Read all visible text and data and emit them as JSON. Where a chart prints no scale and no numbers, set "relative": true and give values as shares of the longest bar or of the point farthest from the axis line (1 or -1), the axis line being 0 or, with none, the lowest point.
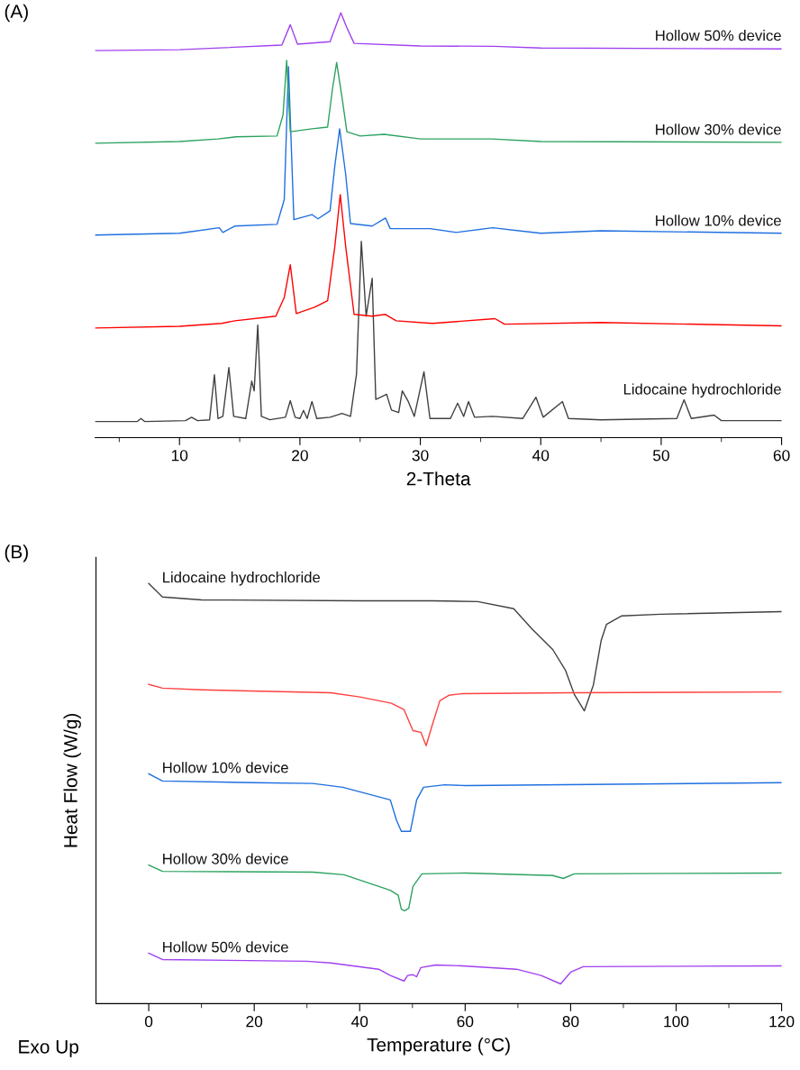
{
  "chart_data": [
    {
      "type": "line",
      "title": "(A)",
      "xlabel": "2-Theta",
      "relative": true,
      "xlim": [
        3,
        60
      ],
      "xticks": [
        {
          "value": 5,
          "label": null
        },
        10,
        {
          "value": 15,
          "label": null
        },
        20,
        {
          "value": 25,
          "label": null
        },
        30,
        {
          "value": 35,
          "label": null
        },
        40,
        {
          "value": 45,
          "label": null
        },
        50,
        {
          "value": 55,
          "label": null
        },
        60
      ],
      "grid": false,
      "legend": false,
      "marker": "none",
      "line_style": "solid",
      "series": [
        {
          "name": "Lidocaine hydrochloride",
          "color": "#404040",
          "x": [
            3,
            6.5,
            6.8,
            7.1,
            10.5,
            11,
            11.5,
            12.5,
            12.9,
            13.2,
            13.6,
            14.1,
            14.5,
            15.5,
            16.0,
            16.2,
            16.5,
            16.8,
            17.5,
            18.8,
            19.2,
            19.6,
            20.0,
            20.3,
            20.6,
            21.0,
            21.4,
            22.5,
            23.5,
            24.2,
            24.7,
            25.1,
            25.5,
            26.0,
            26.3,
            26.7,
            27.2,
            27.6,
            28.2,
            28.5,
            29.0,
            29.5,
            30.3,
            30.8,
            32.5,
            33.1,
            33.6,
            34.0,
            34.5,
            36.0,
            38.5,
            39.6,
            40.2,
            41.8,
            42.3,
            45,
            51.3,
            51.9,
            52.5,
            54.4,
            55,
            60
          ],
          "values": [
            0.038,
            0.038,
            0.045,
            0.038,
            0.04,
            0.048,
            0.04,
            0.042,
            0.148,
            0.045,
            0.05,
            0.165,
            0.05,
            0.045,
            0.133,
            0.11,
            0.265,
            0.05,
            0.042,
            0.048,
            0.087,
            0.048,
            0.045,
            0.064,
            0.045,
            0.085,
            0.045,
            0.048,
            0.057,
            0.05,
            0.15,
            0.462,
            0.286,
            0.375,
            0.09,
            0.095,
            0.102,
            0.065,
            0.059,
            0.11,
            0.085,
            0.05,
            0.155,
            0.045,
            0.045,
            0.081,
            0.05,
            0.085,
            0.048,
            0.05,
            0.045,
            0.095,
            0.048,
            0.085,
            0.045,
            0.042,
            0.045,
            0.089,
            0.045,
            0.053,
            0.04,
            0.04
          ]
        },
        {
          "color": "#ff0000",
          "x": [
            3,
            10,
            13.5,
            14.6,
            18,
            18.7,
            19.2,
            19.7,
            21.2,
            22.3,
            22.9,
            23.35,
            23.8,
            24.5,
            26,
            27.1,
            28,
            31,
            36.2,
            37,
            45,
            60
          ],
          "values": [
            0.258,
            0.262,
            0.269,
            0.275,
            0.286,
            0.33,
            0.407,
            0.292,
            0.307,
            0.322,
            0.45,
            0.572,
            0.45,
            0.29,
            0.286,
            0.29,
            0.275,
            0.269,
            0.28,
            0.267,
            0.271,
            0.263
          ]
        },
        {
          "name": "Hollow 10% device",
          "color": "#1f6fe0",
          "x": [
            3,
            10,
            13.3,
            13.6,
            14.6,
            18.1,
            18.7,
            19.05,
            19.5,
            21.0,
            21.5,
            22.5,
            22.9,
            23.3,
            23.8,
            24.2,
            26,
            27.1,
            27.5,
            30.8,
            33,
            36,
            40,
            45,
            60
          ],
          "values": [
            0.477,
            0.481,
            0.494,
            0.483,
            0.498,
            0.502,
            0.56,
            0.873,
            0.513,
            0.525,
            0.515,
            0.534,
            0.64,
            0.727,
            0.62,
            0.504,
            0.498,
            0.517,
            0.492,
            0.492,
            0.483,
            0.494,
            0.481,
            0.487,
            0.481
          ]
        },
        {
          "name": "Hollow 30% device",
          "color": "#2ca25f",
          "x": [
            3,
            10,
            13.2,
            14.7,
            18.1,
            18.6,
            18.9,
            19.2,
            21,
            22.3,
            22.7,
            23.05,
            23.5,
            23.9,
            25,
            27,
            30,
            35.9,
            40,
            60
          ],
          "values": [
            0.693,
            0.697,
            0.703,
            0.708,
            0.71,
            0.76,
            0.888,
            0.72,
            0.727,
            0.731,
            0.82,
            0.883,
            0.8,
            0.72,
            0.71,
            0.714,
            0.703,
            0.703,
            0.697,
            0.695
          ]
        },
        {
          "name": "Hollow 50% device",
          "color": "#a040f0",
          "x": [
            3,
            10,
            18.5,
            19.2,
            19.8,
            22.5,
            23.0,
            23.4,
            23.9,
            24.5,
            30,
            36.1,
            40,
            60
          ],
          "values": [
            0.911,
            0.913,
            0.924,
            0.972,
            0.926,
            0.932,
            0.97,
            1.0,
            0.965,
            0.928,
            0.922,
            0.921,
            0.917,
            0.915
          ]
        }
      ]
    },
    {
      "type": "line",
      "title": "(B)",
      "xlabel": "Temperature (°C)",
      "ylabel": "Heat Flow (W/g)",
      "relative": true,
      "xlim": [
        -10,
        120
      ],
      "xticks": [
        0,
        {
          "value": 10,
          "label": null
        },
        20,
        {
          "value": 30,
          "label": null
        },
        40,
        {
          "value": 50,
          "label": null
        },
        60,
        {
          "value": 70,
          "label": null
        },
        80,
        {
          "value": 90,
          "label": null
        },
        100,
        {
          "value": 110,
          "label": null
        },
        120
      ],
      "grid": false,
      "legend": false,
      "marker": "none",
      "line_style": "solid",
      "annotations": [
        "Exo Up"
      ],
      "series": [
        {
          "name": "Lidocaine hydrochloride",
          "color": "#404040",
          "x": [
            0,
            2.6,
            10,
            40,
            53.8,
            62.4,
            69.2,
            72.6,
            76.6,
            79.0,
            80.7,
            82.6,
            84.3,
            85.8,
            86.8,
            89.7,
            97.1,
            120
          ],
          "values": [
            1.0,
            0.968,
            0.961,
            0.959,
            0.959,
            0.957,
            0.94,
            0.893,
            0.843,
            0.794,
            0.736,
            0.697,
            0.758,
            0.865,
            0.903,
            0.923,
            0.927,
            0.933
          ]
        },
        {
          "color": "#ff4040",
          "x": [
            0,
            2.6,
            10,
            34.5,
            40,
            46,
            48.4,
            50.1,
            51.6,
            52.6,
            53.8,
            55.2,
            56.9,
            59.5,
            80,
            120
          ],
          "values": [
            0.76,
            0.751,
            0.747,
            0.74,
            0.73,
            0.715,
            0.7,
            0.65,
            0.646,
            0.614,
            0.665,
            0.721,
            0.734,
            0.738,
            0.74,
            0.742
          ]
        },
        {
          "name": "Hollow 10% device",
          "color": "#1f6fe0",
          "x": [
            0,
            2.6,
            20,
            31.1,
            36.8,
            45.8,
            47.0,
            47.9,
            49.6,
            50.8,
            52.1,
            56.1,
            60,
            120
          ],
          "values": [
            0.547,
            0.53,
            0.526,
            0.524,
            0.515,
            0.485,
            0.436,
            0.41,
            0.41,
            0.485,
            0.515,
            0.521,
            0.519,
            0.526
          ]
        },
        {
          "name": "Hollow 30% device",
          "color": "#2ca25f",
          "x": [
            0,
            2.6,
            31.1,
            37,
            45.8,
            47.3,
            47.9,
            48.5,
            49.3,
            50.1,
            51.8,
            60,
            76.6,
            78.6,
            80.7,
            120
          ],
          "values": [
            0.33,
            0.315,
            0.313,
            0.307,
            0.27,
            0.258,
            0.225,
            0.221,
            0.227,
            0.279,
            0.309,
            0.311,
            0.305,
            0.298,
            0.309,
            0.311
          ]
        },
        {
          "name": "Hollow 50% device",
          "color": "#a040f0",
          "x": [
            0,
            2.6,
            30,
            34.5,
            43.6,
            45.8,
            48.4,
            49.1,
            50.1,
            50.8,
            51.6,
            54.4,
            59.5,
            69.7,
            74.4,
            78.1,
            80.0,
            82.4,
            120
          ],
          "values": [
            0.12,
            0.105,
            0.101,
            0.097,
            0.082,
            0.067,
            0.054,
            0.067,
            0.069,
            0.064,
            0.086,
            0.092,
            0.09,
            0.082,
            0.067,
            0.047,
            0.075,
            0.088,
            0.09
          ]
        }
      ]
    }
  ]
}
